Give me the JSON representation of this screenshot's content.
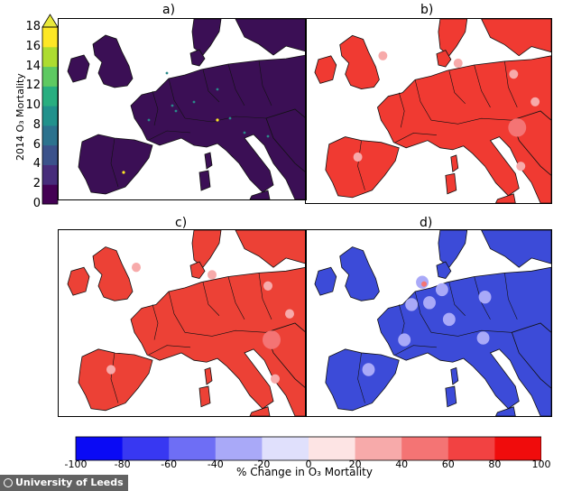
{
  "panels": [
    {
      "label": "a)",
      "fill": "#3b0f55",
      "land_style": "absolute"
    },
    {
      "label": "b)",
      "fill": "#f03a32",
      "land_style": "increase"
    },
    {
      "label": "c)",
      "fill": "#ec4136",
      "land_style": "increase"
    },
    {
      "label": "d)",
      "fill": "#3c4bd8",
      "land_style": "decrease"
    }
  ],
  "colorbar_absolute": {
    "label": "2014 O₃ Mortality",
    "ticks": [
      "0",
      "2",
      "4",
      "6",
      "8",
      "10",
      "12",
      "14",
      "16",
      "18"
    ],
    "colors": [
      "#440154",
      "#472d7b",
      "#3b528b",
      "#2c728e",
      "#21918c",
      "#28ae80",
      "#5ec962",
      "#addc30",
      "#fde725"
    ]
  },
  "colorbar_change": {
    "label": "% Change in O₃ Mortality",
    "ticks": [
      "-100",
      "-80",
      "-60",
      "-40",
      "-20",
      "0",
      "20",
      "40",
      "60",
      "80",
      "100"
    ],
    "colors": [
      "#0a0af5",
      "#3838f2",
      "#6e6ef5",
      "#a9a9f8",
      "#e0e0fc",
      "#fde4e4",
      "#f7aaaa",
      "#f47474",
      "#f24242",
      "#f00c0c"
    ]
  },
  "watermark": "University of Leeds"
}
